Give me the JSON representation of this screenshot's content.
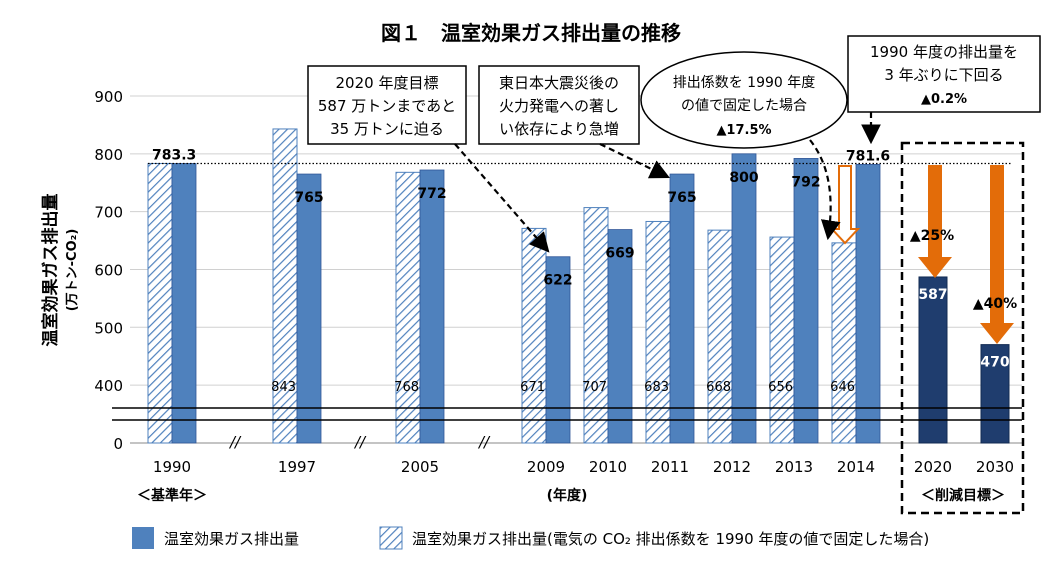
{
  "chart_data": {
    "type": "bar",
    "title": "図１　温室効果ガス排出量の推移",
    "ylabel": "温室効果ガス排出量",
    "ylabel_unit": "(万トン-CO₂)",
    "ylim": [
      0,
      900
    ],
    "axis_break": "0–350 (broken axis)",
    "y_ticks": [
      "0",
      "400",
      "500",
      "600",
      "700",
      "800",
      "900"
    ],
    "categories": [
      "1990",
      "1997",
      "2005",
      "2009",
      "2010",
      "2011",
      "2012",
      "2013",
      "2014",
      "2020",
      "2030"
    ],
    "break_marks": [
      "//",
      "//",
      "//"
    ],
    "category_group_labels": {
      "base": "＜基準年＞",
      "years": "(年度)",
      "targets": "＜削減目標＞"
    },
    "series": [
      {
        "name": "温室効果ガス排出量",
        "style": "solid",
        "color": "#4f81bd",
        "values": [
          783.3,
          765,
          772,
          622,
          669,
          765,
          800,
          792,
          781.6,
          null,
          null
        ],
        "labels": [
          "783.3",
          "765",
          "772",
          "622",
          "669",
          "765",
          "800",
          "792",
          "781.6",
          "",
          ""
        ]
      },
      {
        "name": "温室効果ガス排出量(電気の CO₂ 排出係数を 1990 年度の値で固定した場合)",
        "style": "hatched",
        "color": "#4f81bd",
        "values": [
          783.3,
          843,
          768,
          671,
          707,
          683,
          668,
          656,
          646,
          null,
          null
        ],
        "labels": [
          "",
          "843",
          "768",
          "671",
          "707",
          "683",
          "668",
          "656",
          "646",
          "",
          ""
        ]
      },
      {
        "name": "削減目標",
        "style": "solid",
        "color": "#1f3d6e",
        "values": [
          null,
          null,
          null,
          null,
          null,
          null,
          null,
          null,
          null,
          587,
          470
        ],
        "labels": [
          "",
          "",
          "",
          "",
          "",
          "",
          "",
          "",
          "",
          "587",
          "470"
        ]
      }
    ],
    "reference_line": 783.3,
    "annotations": {
      "box1": [
        "2020 年度目標",
        "587 万トンまであと",
        "35 万トンに迫る"
      ],
      "box2": [
        "東日本大震災後の",
        "火力発電への著し",
        "い依存により急増"
      ],
      "ellipse": [
        "排出係数を 1990 年度",
        "の値で固定した場合",
        "▲17.5%"
      ],
      "box3": [
        "1990 年度の排出量を",
        "3 年ぶりに下回る",
        "▲0.2%"
      ],
      "cut_2020": "▲25%",
      "cut_2030": "▲40%"
    },
    "colors": {
      "actual": "#4f81bd",
      "target": "#1f3d6e",
      "reduction_arrow": "#e36c09"
    },
    "legend": [
      {
        "label": "温室効果ガス排出量",
        "style": "solid"
      },
      {
        "label": "温室効果ガス排出量(電気の CO₂ 排出係数を 1990 年度の値で固定した場合)",
        "style": "hatched"
      }
    ],
    "legend_position": "bottom"
  }
}
